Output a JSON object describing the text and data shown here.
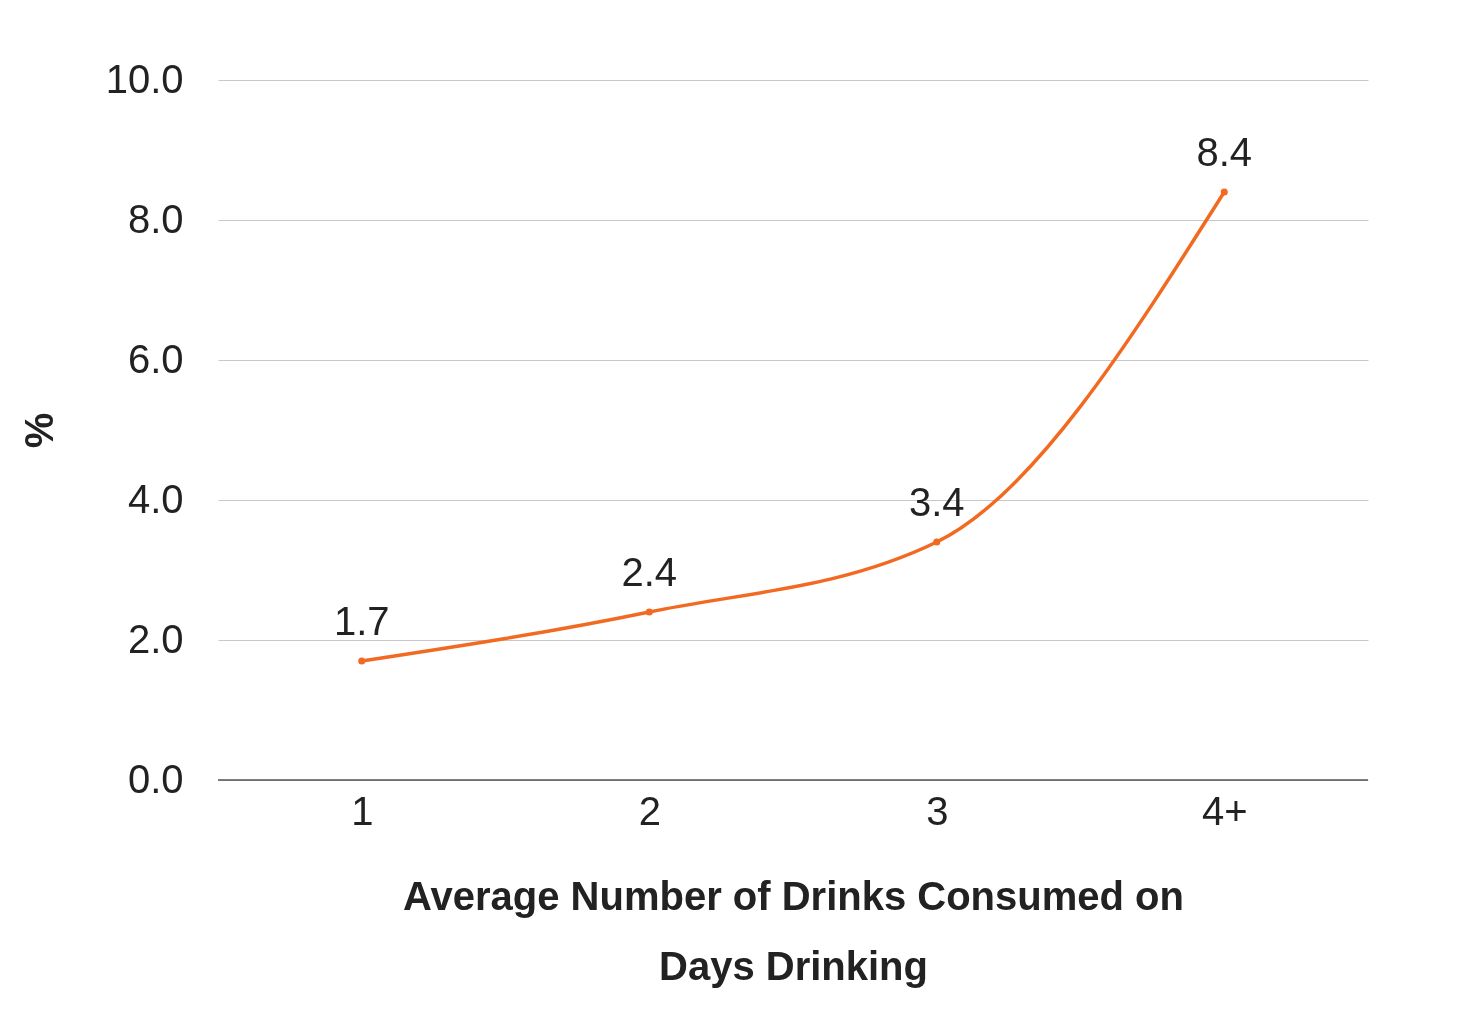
{
  "chart_data": {
    "type": "line",
    "xlabel": "Average Number of Drinks Consumed on Days Drinking",
    "ylabel": "%",
    "categories": [
      "1",
      "2",
      "3",
      "4+"
    ],
    "series": [
      {
        "color": "#f26a21",
        "values": [
          1.7,
          2.4,
          3.4,
          8.4
        ]
      }
    ],
    "ylim": [
      0,
      10
    ],
    "yticks": [
      {
        "value": 0,
        "label": "0.0"
      },
      {
        "value": 2,
        "label": "2.0"
      },
      {
        "value": 4,
        "label": "4.0"
      },
      {
        "value": 6,
        "label": "6.0"
      },
      {
        "value": 8,
        "label": "8.0"
      },
      {
        "value": 10,
        "label": "10.0"
      }
    ],
    "grid": "y",
    "marker": "circle",
    "line_style": "solid",
    "data_labels": true
  }
}
